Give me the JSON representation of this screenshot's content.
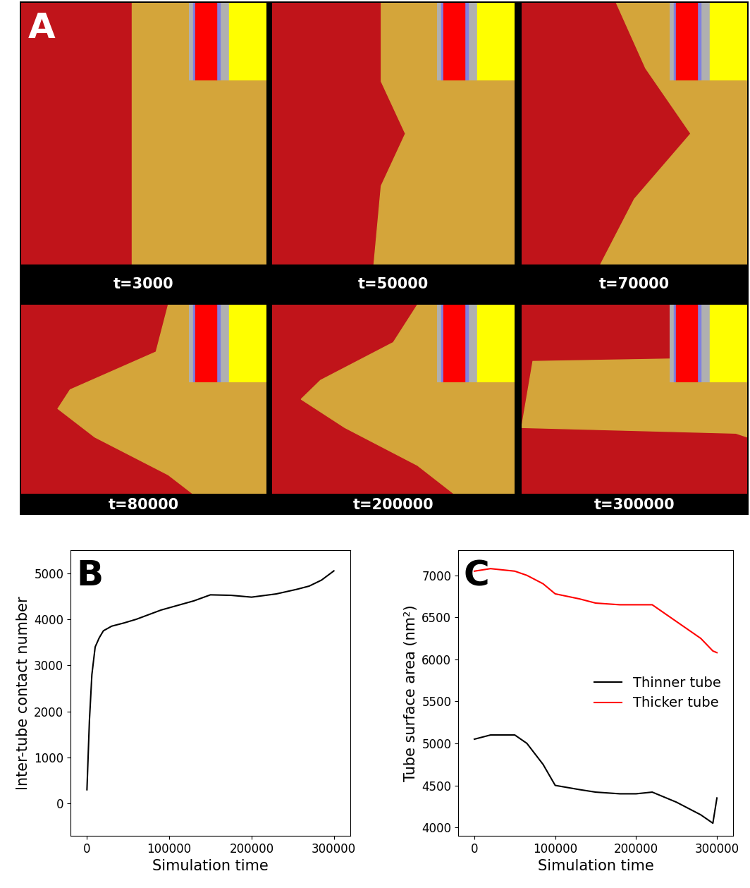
{
  "panel_a": {
    "label": "A",
    "snapshots": [
      "t=3000",
      "t=50000",
      "t=70000",
      "t=80000",
      "t=200000",
      "t=300000"
    ]
  },
  "chart_data": [
    {
      "type": "line",
      "panel": "B",
      "x_label": "Simulation time",
      "y_label": "Inter-tube contact number",
      "x": [
        0,
        3000,
        6000,
        10000,
        15000,
        20000,
        30000,
        45000,
        60000,
        90000,
        130000,
        150000,
        175000,
        200000,
        230000,
        255000,
        270000,
        285000,
        300000
      ],
      "values": [
        300,
        1800,
        2800,
        3400,
        3600,
        3750,
        3850,
        3920,
        4000,
        4200,
        4400,
        4530,
        4520,
        4480,
        4550,
        4650,
        4720,
        4850,
        5050
      ],
      "color": "#000000",
      "xlim": [
        -20000,
        320000
      ],
      "xticks": [
        0,
        100000,
        200000,
        300000
      ],
      "ylim": [
        -700,
        5500
      ],
      "yticks": [
        0,
        1000,
        2000,
        3000,
        4000,
        5000
      ]
    },
    {
      "type": "line",
      "panel": "C",
      "x_label": "Simulation time",
      "y_label": "Tube surface area (nm²)",
      "x": [
        0,
        20000,
        50000,
        65000,
        85000,
        100000,
        130000,
        150000,
        180000,
        200000,
        220000,
        250000,
        280000,
        295000,
        300000
      ],
      "series": [
        {
          "name": "Thinner tube",
          "color": "#000000",
          "values": [
            5050,
            5100,
            5100,
            5000,
            4750,
            4500,
            4450,
            4420,
            4400,
            4400,
            4420,
            4300,
            4150,
            4050,
            4350
          ]
        },
        {
          "name": "Thicker tube",
          "color": "#ff0000",
          "values": [
            7050,
            7080,
            7050,
            7000,
            6900,
            6780,
            6720,
            6670,
            6650,
            6650,
            6650,
            6450,
            6250,
            6100,
            6080
          ]
        }
      ],
      "legend": "center right",
      "xlim": [
        -20000,
        320000
      ],
      "xticks": [
        0,
        100000,
        200000,
        300000
      ],
      "ylim": [
        3900,
        7300
      ],
      "yticks": [
        4000,
        4500,
        5000,
        5500,
        6000,
        6500,
        7000
      ]
    }
  ]
}
